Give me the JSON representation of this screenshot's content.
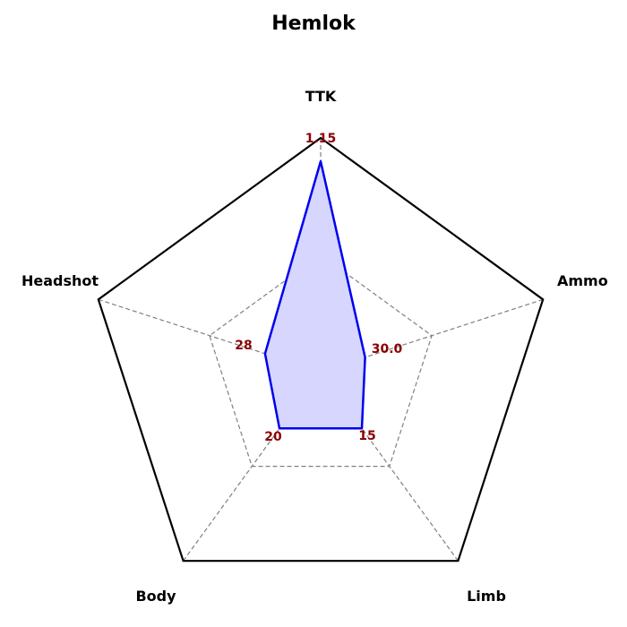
{
  "chart_data": {
    "type": "radar",
    "title": "Hemlok",
    "axes": [
      {
        "name": "TTK",
        "value": 1.15,
        "value_label": "1.15",
        "fraction": 0.9
      },
      {
        "name": "Ammo",
        "value": 30.0,
        "value_label": "30.0",
        "fraction": 0.2
      },
      {
        "name": "Limb",
        "value": 15,
        "value_label": "15",
        "fraction": 0.3
      },
      {
        "name": "Body",
        "value": 20,
        "value_label": "20",
        "fraction": 0.3
      },
      {
        "name": "Headshot",
        "value": 28,
        "value_label": "28",
        "fraction": 0.25
      }
    ],
    "grid_levels": [
      0.5,
      1.0
    ],
    "grid": true
  },
  "colors": {
    "series_line": "#0000ee",
    "series_fill": "#d6d6ff",
    "value_label": "#8b0000",
    "outer_ring": "#000000",
    "grid": "#808080"
  }
}
